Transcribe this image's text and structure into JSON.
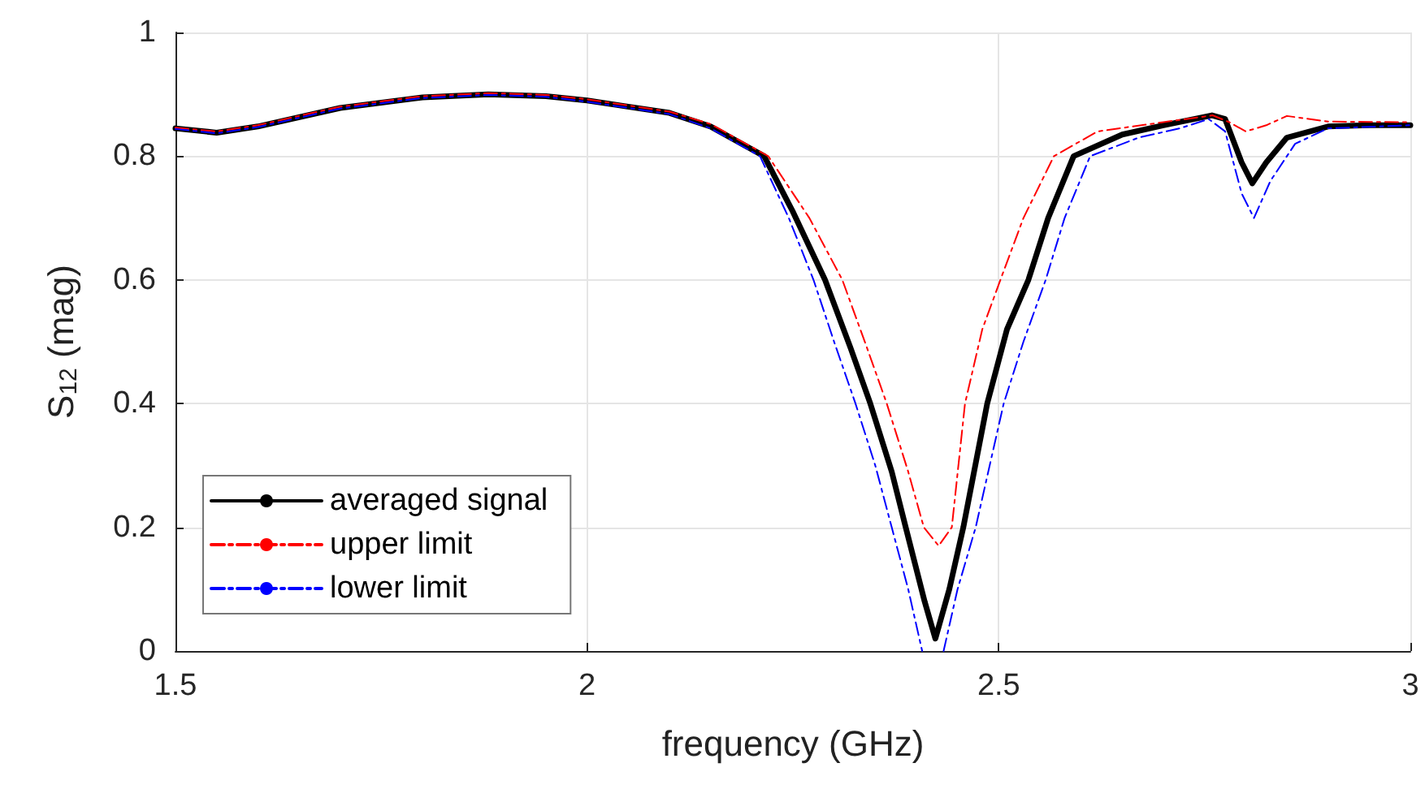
{
  "chart_data": {
    "type": "line",
    "xlabel": "frequency (GHz)",
    "ylabel": "S$_{12}$ (mag)",
    "xlim": [
      1.5,
      3
    ],
    "xticks": [
      1.5,
      2,
      2.5,
      3
    ],
    "ylim": [
      0,
      1
    ],
    "yticks": [
      0,
      0.2,
      0.4,
      0.6,
      0.8,
      1
    ],
    "grid": true,
    "legend": "bottom left",
    "marker": "none",
    "series": [
      {
        "name": "averaged signal",
        "color": "#000000",
        "line_style": "solid",
        "x": [
          1.5,
          1.55,
          1.6,
          1.7,
          1.8,
          1.88,
          1.95,
          2.0,
          2.1,
          2.15,
          2.215,
          2.25,
          2.289,
          2.32,
          2.344,
          2.37,
          2.387,
          2.41,
          2.423,
          2.44,
          2.457,
          2.486,
          2.51,
          2.536,
          2.56,
          2.591,
          2.65,
          2.7,
          2.759,
          2.775,
          2.795,
          2.808,
          2.825,
          2.85,
          2.9,
          2.95,
          3.0
        ],
        "values": [
          0.845,
          0.838,
          0.848,
          0.878,
          0.895,
          0.9,
          0.897,
          0.89,
          0.87,
          0.848,
          0.8,
          0.71,
          0.6,
          0.49,
          0.4,
          0.29,
          0.2,
          0.08,
          0.02,
          0.1,
          0.2,
          0.4,
          0.52,
          0.6,
          0.7,
          0.8,
          0.835,
          0.85,
          0.866,
          0.86,
          0.79,
          0.756,
          0.79,
          0.83,
          0.848,
          0.85,
          0.85
        ]
      },
      {
        "name": "upper limit",
        "color": "#ff0000",
        "line_style": "dashdot",
        "x": [
          1.5,
          1.55,
          1.6,
          1.7,
          1.8,
          1.88,
          1.95,
          2.0,
          2.1,
          2.15,
          2.22,
          2.27,
          2.31,
          2.34,
          2.364,
          2.39,
          2.409,
          2.427,
          2.443,
          2.459,
          2.48,
          2.502,
          2.53,
          2.567,
          2.62,
          2.7,
          2.76,
          2.78,
          2.8,
          2.825,
          2.85,
          2.9,
          3.0
        ],
        "values": [
          0.846,
          0.84,
          0.85,
          0.88,
          0.897,
          0.902,
          0.899,
          0.892,
          0.872,
          0.852,
          0.8,
          0.7,
          0.6,
          0.49,
          0.4,
          0.29,
          0.2,
          0.17,
          0.2,
          0.4,
          0.52,
          0.6,
          0.7,
          0.8,
          0.84,
          0.855,
          0.866,
          0.855,
          0.84,
          0.85,
          0.865,
          0.856,
          0.855
        ]
      },
      {
        "name": "lower limit",
        "color": "#0000ff",
        "line_style": "dashdot",
        "x": [
          1.5,
          1.55,
          1.6,
          1.7,
          1.8,
          1.88,
          1.95,
          2.0,
          2.1,
          2.15,
          2.21,
          2.245,
          2.275,
          2.3,
          2.326,
          2.35,
          2.37,
          2.39,
          2.407,
          2.42,
          2.433,
          2.45,
          2.472,
          2.506,
          2.53,
          2.557,
          2.58,
          2.611,
          2.67,
          2.72,
          2.755,
          2.775,
          2.795,
          2.81,
          2.83,
          2.86,
          2.9,
          3.0
        ],
        "values": [
          0.844,
          0.837,
          0.847,
          0.877,
          0.894,
          0.899,
          0.896,
          0.888,
          0.868,
          0.845,
          0.8,
          0.7,
          0.6,
          0.5,
          0.4,
          0.3,
          0.2,
          0.1,
          0,
          null,
          0,
          0.1,
          0.2,
          0.4,
          0.5,
          0.6,
          0.7,
          0.8,
          0.83,
          0.845,
          0.86,
          0.84,
          0.74,
          0.7,
          0.76,
          0.82,
          0.845,
          0.85
        ]
      }
    ]
  }
}
